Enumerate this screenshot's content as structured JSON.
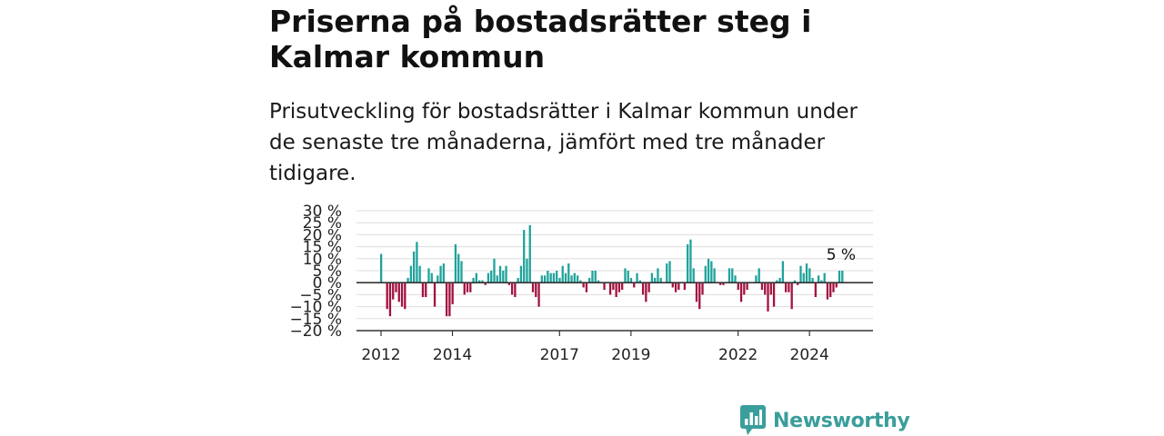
{
  "title": "Priserna på bostadsrätter steg i Kalmar kommun",
  "subtitle": "Prisutveckling för bostadsrätter i Kalmar kommun under de senaste tre månaderna, jämfört med tre månader tidigare.",
  "brand": {
    "name": "Newsworthy",
    "color": "#3a9e9b",
    "icon": "bar-chart-speech-bubble-icon"
  },
  "colors": {
    "positive": "#1fa39b",
    "negative": "#a3123f",
    "grid": "#dddddd",
    "axis": "#333333"
  },
  "chart_data": {
    "type": "bar",
    "title": "",
    "xlabel": "",
    "ylabel": "",
    "ylim": [
      -20,
      30
    ],
    "yticks": [
      -20,
      -15,
      -10,
      -5,
      0,
      5,
      10,
      15,
      20,
      25,
      30
    ],
    "ytick_labels": [
      "−20 %",
      "−15 %",
      "−10 %",
      "−5 %",
      "0 %",
      "5 %",
      "10 %",
      "15 %",
      "20 %",
      "25 %",
      "30 %"
    ],
    "xticks": [
      {
        "label": "2012",
        "index": 0
      },
      {
        "label": "2014",
        "index": 24
      },
      {
        "label": "2017",
        "index": 60
      },
      {
        "label": "2019",
        "index": 84
      },
      {
        "label": "2022",
        "index": 120
      },
      {
        "label": "2024",
        "index": 144
      }
    ],
    "grid": true,
    "start": "2012-01",
    "frequency": "monthly",
    "annotation": {
      "text": "5 %",
      "index": 154
    },
    "values": [
      12,
      0,
      -11,
      -14,
      -7,
      -4,
      -8,
      -10,
      -11,
      2,
      7,
      13,
      17,
      7,
      -6,
      -6,
      6,
      4,
      -10,
      3,
      7,
      8,
      -14,
      -14,
      -9,
      16,
      12,
      9,
      -5,
      -4,
      -4,
      2,
      4,
      1,
      1,
      -1,
      4,
      5,
      10,
      3,
      7,
      5,
      7,
      -1,
      -5,
      -6,
      2,
      7,
      22,
      10,
      24,
      -4,
      -6,
      -10,
      3,
      3,
      5,
      4,
      4,
      5,
      2,
      7,
      4,
      8,
      3,
      4,
      3,
      1,
      -2,
      -4,
      2,
      5,
      5,
      1,
      0,
      -3,
      0,
      -5,
      -3,
      -6,
      -4,
      -3,
      6,
      5,
      2,
      -2,
      4,
      1,
      -5,
      -8,
      -4,
      4,
      2,
      6,
      2,
      0,
      8,
      9,
      -2,
      -4,
      -3,
      0,
      -3,
      16,
      18,
      6,
      -8,
      -11,
      -5,
      7,
      10,
      9,
      6,
      0,
      -1,
      -1,
      0,
      6,
      6,
      3,
      -3,
      -8,
      -5,
      -3,
      0,
      0,
      3,
      6,
      -3,
      -5,
      -12,
      -5,
      -10,
      1,
      2,
      9,
      -4,
      -4,
      -11,
      1,
      -1,
      7,
      4,
      8,
      6,
      2,
      -6,
      3,
      1,
      4,
      -7,
      -6,
      -4,
      -2,
      5,
      5
    ]
  }
}
